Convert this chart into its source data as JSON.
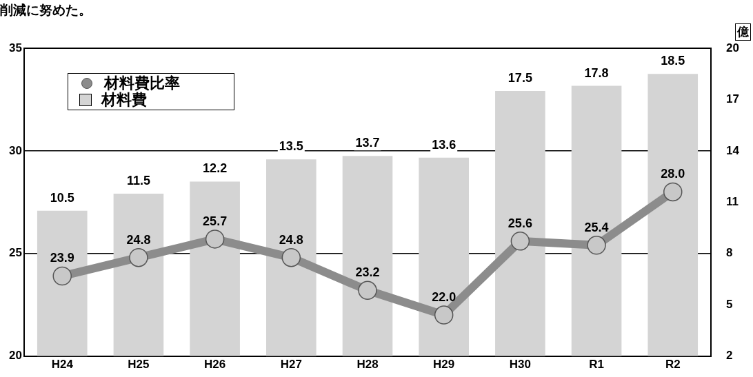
{
  "chart_data": {
    "type": "bar",
    "annotations": [
      "削減に努めた。"
    ],
    "y2label": "億",
    "categories": [
      "H24",
      "H25",
      "H26",
      "H27",
      "H28",
      "H29",
      "H30",
      "R1",
      "R2"
    ],
    "series": [
      {
        "name": "材料費比率",
        "type": "line",
        "axis": "y",
        "color": "#8c8c8c",
        "values": [
          23.9,
          24.8,
          25.7,
          24.8,
          23.2,
          22.0,
          25.6,
          25.4,
          28.0
        ],
        "value_labels": [
          "23.9",
          "24.8",
          "25.7",
          "24.8",
          "23.2",
          "22.0",
          "25.6",
          "25.4",
          "28.0"
        ]
      },
      {
        "name": "材料費",
        "axis": "y2",
        "color": "#d4d4d4",
        "values": [
          10.5,
          11.5,
          12.2,
          13.5,
          13.7,
          13.6,
          17.5,
          17.8,
          18.5
        ],
        "value_labels": [
          "10.5",
          "11.5",
          "12.2",
          "13.5",
          "13.7",
          "13.6",
          "17.5",
          "17.8",
          "18.5"
        ]
      }
    ],
    "ylim": [
      20,
      35
    ],
    "yticks": [
      20,
      25,
      30,
      35
    ],
    "y2lim": [
      2,
      20
    ],
    "y2ticks": [
      2,
      5,
      8,
      11,
      14,
      17,
      20
    ],
    "grid": "y",
    "legend": "top left",
    "marker": "circle",
    "line_style": "solid"
  }
}
